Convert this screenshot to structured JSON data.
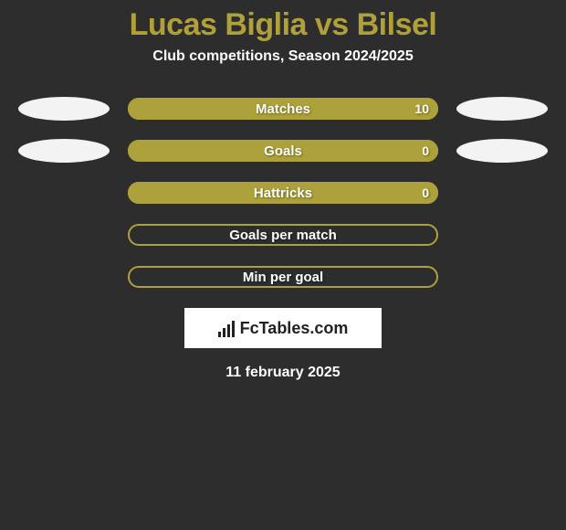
{
  "background_color": "#2d2d2d",
  "title": {
    "text": "Lucas Biglia vs Bilsel",
    "color": "#b0a03a",
    "fontsize": 34
  },
  "subtitle": {
    "text": "Club competitions, Season 2024/2025",
    "color": "#ffffff",
    "fontsize": 16
  },
  "accent_color": "#aca13a",
  "bar_border_color": "#aca13a",
  "text_color": "#ffffff",
  "ellipse_color": "#f3f3f3",
  "stats": [
    {
      "label": "Matches",
      "value_right": "10",
      "fill_side": "right",
      "fill_pct": 100,
      "show_left_ellipse": true,
      "show_right_ellipse": true
    },
    {
      "label": "Goals",
      "value_right": "0",
      "fill_side": "right",
      "fill_pct": 100,
      "show_left_ellipse": true,
      "show_right_ellipse": true
    },
    {
      "label": "Hattricks",
      "value_right": "0",
      "fill_side": "right",
      "fill_pct": 100,
      "show_left_ellipse": false,
      "show_right_ellipse": false
    },
    {
      "label": "Goals per match",
      "value_right": "",
      "fill_side": "none",
      "fill_pct": 0,
      "show_left_ellipse": false,
      "show_right_ellipse": false
    },
    {
      "label": "Min per goal",
      "value_right": "",
      "fill_side": "none",
      "fill_pct": 0,
      "show_left_ellipse": false,
      "show_right_ellipse": false
    }
  ],
  "logo": {
    "background_color": "#ffffff",
    "text": "FcTables.com"
  },
  "date": {
    "text": "11 february 2025",
    "color": "#ffffff"
  }
}
